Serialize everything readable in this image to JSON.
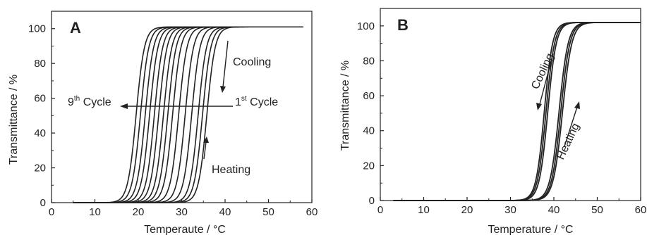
{
  "chart_data": [
    {
      "type": "line",
      "panel_label": "A",
      "xlabel": "Temperaute / °C",
      "ylabel": "Transmittance / %",
      "xlim": [
        0,
        60
      ],
      "ylim": [
        0,
        110
      ],
      "xticks": [
        "0",
        "10",
        "20",
        "30",
        "40",
        "50",
        "60"
      ],
      "yticks": [
        "0",
        "20",
        "40",
        "60",
        "80",
        "100"
      ],
      "xtick_values": [
        0,
        10,
        20,
        30,
        40,
        50,
        60
      ],
      "ytick_values": [
        0,
        20,
        40,
        60,
        80,
        100
      ],
      "x_start": 5,
      "x_end": 58,
      "max_transmittance": 101,
      "curve_width": 4.2,
      "midpoints": [
        19.5,
        20.5,
        21.6,
        22.6,
        23.7,
        24.7,
        25.8,
        26.8,
        27.9,
        29.3,
        30.8,
        32.3,
        33.8,
        34.8,
        35.8
      ],
      "annotations": {
        "cooling": "Cooling",
        "heating": "Heating",
        "ninth_cycle": "9",
        "ninth_cycle_sup": "th",
        "ninth_cycle_rest": " Cycle",
        "first_cycle": "1",
        "first_cycle_sup": "st",
        "first_cycle_rest": " Cycle"
      },
      "line_color": "#222222"
    },
    {
      "type": "line",
      "panel_label": "B",
      "xlabel": "Temperature / °C",
      "ylabel": "Transmittance / %",
      "xlim": [
        0,
        60
      ],
      "ylim": [
        0,
        110
      ],
      "xticks": [
        "0",
        "10",
        "20",
        "30",
        "40",
        "50",
        "60"
      ],
      "yticks": [
        "0",
        "20",
        "40",
        "60",
        "80",
        "100"
      ],
      "xtick_values": [
        0,
        10,
        20,
        30,
        40,
        50,
        60
      ],
      "ytick_values": [
        0,
        20,
        40,
        60,
        80,
        100
      ],
      "x_start": 3,
      "x_end": 60,
      "max_transmittance": 102,
      "curves": [
        {
          "midpoint": 37.8,
          "width": 4.2
        },
        {
          "midpoint": 38.2,
          "width": 4.3
        },
        {
          "midpoint": 38.6,
          "width": 4.3
        },
        {
          "midpoint": 41.2,
          "width": 4.6
        },
        {
          "midpoint": 41.6,
          "width": 4.6
        },
        {
          "midpoint": 42.0,
          "width": 4.7
        }
      ],
      "annotations": {
        "cooling": "Cooling",
        "heating": "Heating"
      },
      "line_color": "#222222"
    }
  ]
}
